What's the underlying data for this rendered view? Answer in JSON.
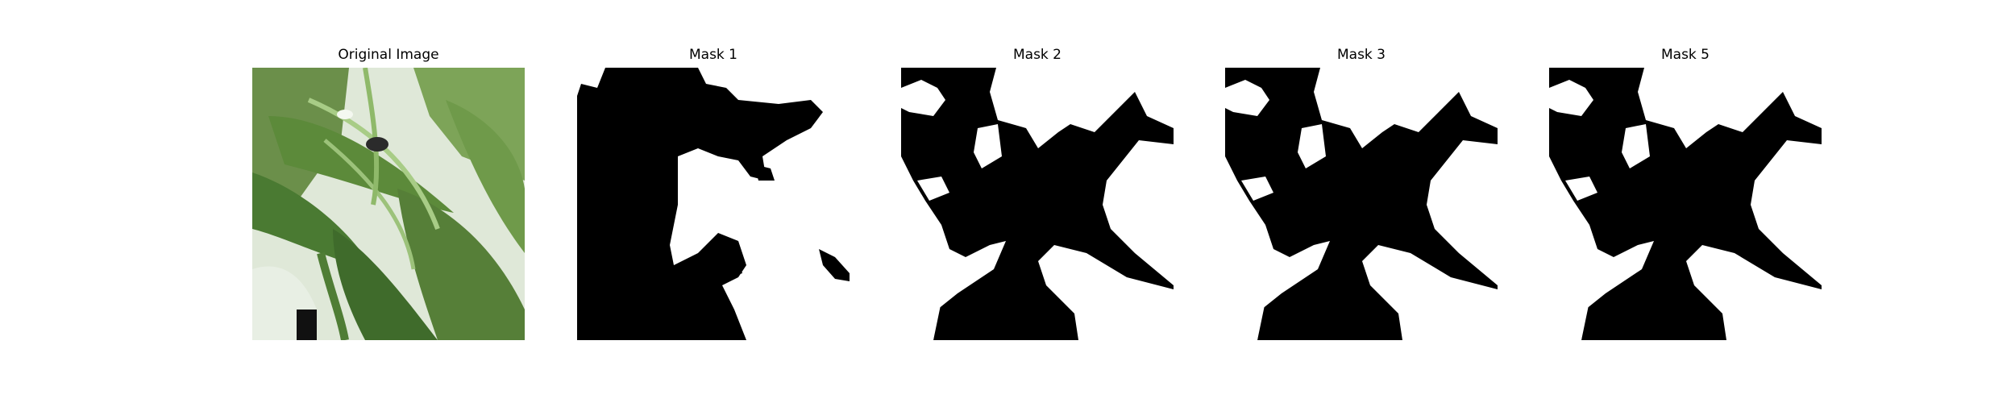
{
  "panels": [
    {
      "title": "Original Image",
      "kind": "photo"
    },
    {
      "title": "Mask 1",
      "kind": "mask"
    },
    {
      "title": "Mask 2",
      "kind": "mask"
    },
    {
      "title": "Mask 3",
      "kind": "mask"
    },
    {
      "title": "Mask 5",
      "kind": "mask"
    }
  ],
  "colors": {
    "mask_fg": "#ffffff",
    "mask_bg": "#000000",
    "leaf_dark": "#4a7a32",
    "leaf_light": "#8fb96a"
  }
}
